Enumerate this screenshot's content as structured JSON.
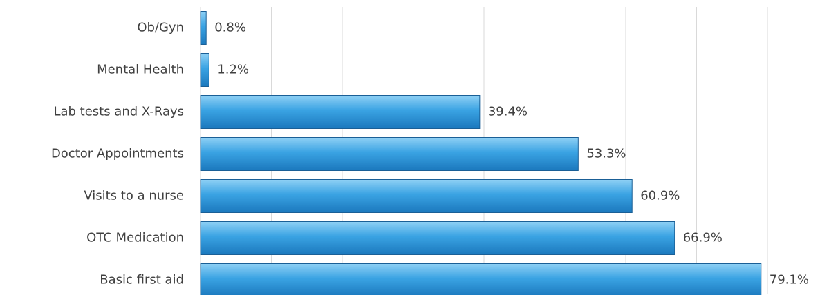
{
  "chart_data": {
    "type": "bar",
    "orientation": "horizontal",
    "categories": [
      "Ob/Gyn",
      "Mental Health",
      "Lab tests and X-Rays",
      "Doctor Appointments",
      "Visits to a nurse",
      "OTC Medication",
      "Basic first aid"
    ],
    "values": [
      0.8,
      1.2,
      39.4,
      53.3,
      60.9,
      66.9,
      79.1
    ],
    "value_labels": [
      "0.8%",
      "1.2%",
      "39.4%",
      "53.3%",
      "60.9%",
      "66.9%",
      "79.1%"
    ],
    "color": "#2f95d8",
    "xlim": [
      0,
      80
    ],
    "xticks": [
      0,
      10,
      20,
      30,
      40,
      50,
      60,
      70,
      80
    ],
    "grid": true
  }
}
